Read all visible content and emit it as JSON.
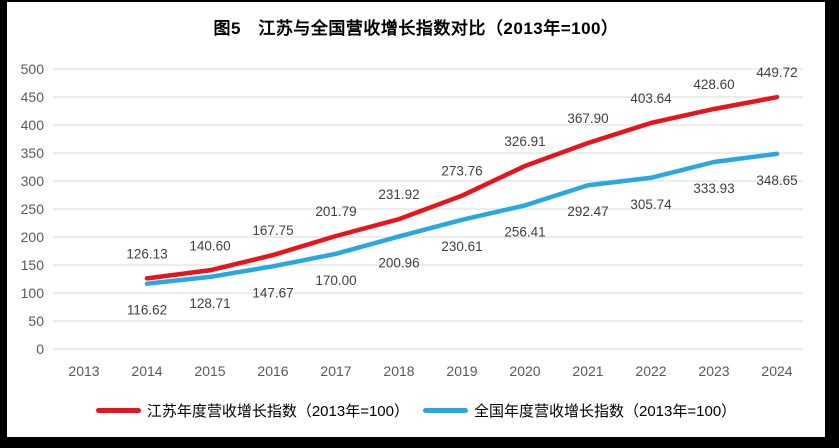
{
  "title": "图5　江苏与全国营收增长指数对比（2013年=100）",
  "colors": {
    "frame": "#000000",
    "background": "#ffffff",
    "gridline": "#d9d9d9",
    "tick_text": "#595959",
    "data_label_text": "#404040",
    "jiangsu_line": "#e8141b",
    "national_line": "#29a8e0"
  },
  "chart_data": {
    "type": "line",
    "title": "图5　江苏与全国营收增长指数对比（2013年=100）",
    "x": [
      2013,
      2014,
      2015,
      2016,
      2017,
      2018,
      2019,
      2020,
      2021,
      2022,
      2023,
      2024
    ],
    "xlabel": "",
    "ylabel": "",
    "ylim": [
      0,
      500
    ],
    "yticks": [
      0,
      50,
      100,
      150,
      200,
      250,
      300,
      350,
      400,
      450,
      500
    ],
    "grid": "horizontal",
    "legend_position": "bottom",
    "value_label_format": "0.00",
    "series": [
      {
        "name": "江苏年度营收增长指数（2013年=100）",
        "color": "#e8141b",
        "start_x": 2014,
        "label_position": "above",
        "values": [
          126.13,
          140.6,
          167.75,
          201.79,
          231.92,
          273.76,
          326.91,
          367.9,
          403.64,
          428.6,
          449.72
        ]
      },
      {
        "name": "全国年度营收增长指数（2013年=100）",
        "color": "#29a8e0",
        "start_x": 2014,
        "label_position": "below",
        "values": [
          116.62,
          128.71,
          147.67,
          170.0,
          200.96,
          230.61,
          256.41,
          292.47,
          305.74,
          333.93,
          348.65
        ]
      }
    ]
  }
}
